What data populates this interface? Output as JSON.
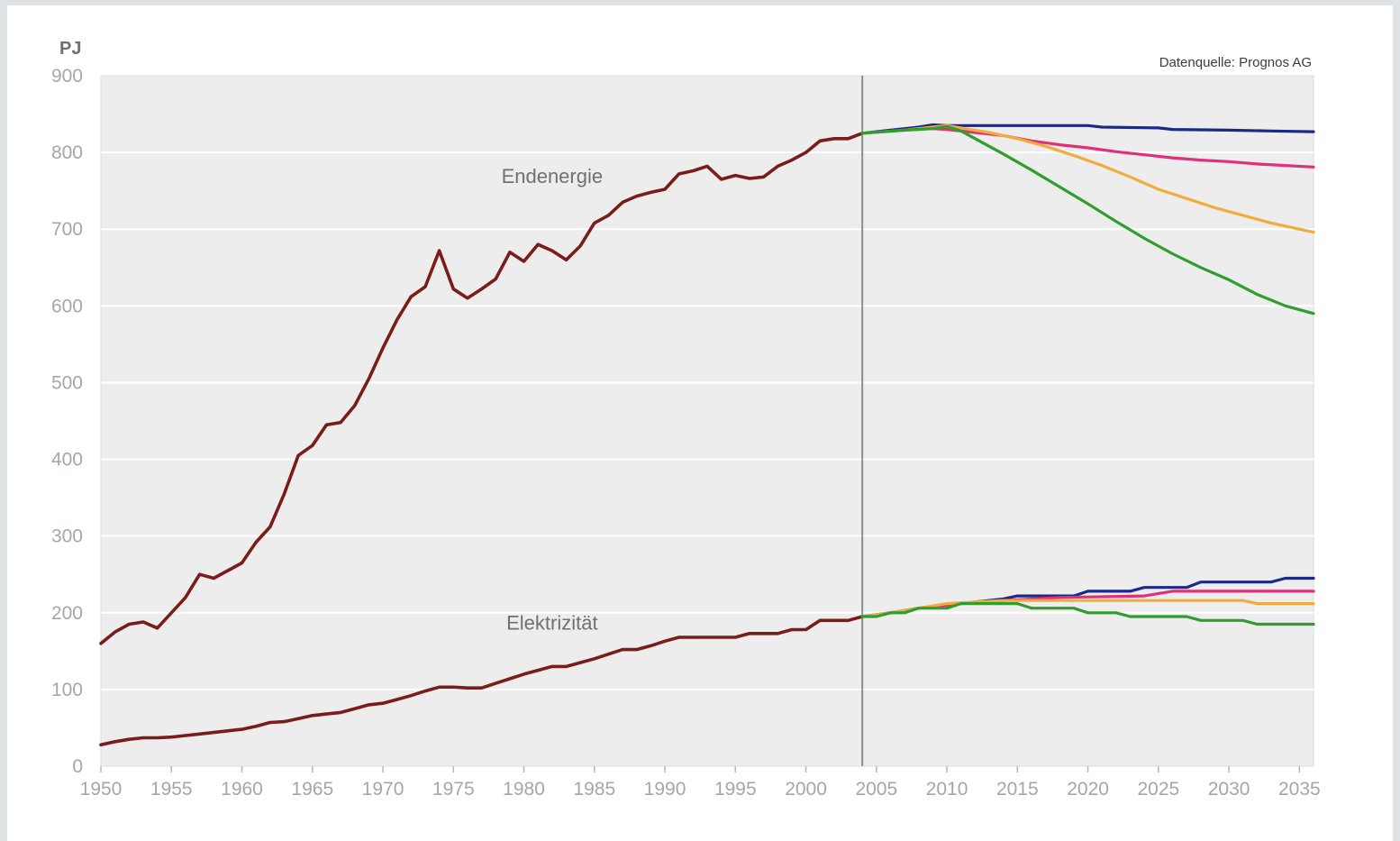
{
  "chart_data": {
    "type": "line",
    "y_unit": "PJ",
    "source": "Datenquelle: Prognos AG",
    "xlim": [
      1950,
      2036
    ],
    "ylim": [
      0,
      900
    ],
    "x_ticks": [
      1950,
      1955,
      1960,
      1965,
      1970,
      1975,
      1980,
      1985,
      1990,
      1995,
      2000,
      2005,
      2010,
      2015,
      2020,
      2025,
      2030,
      2035
    ],
    "y_ticks": [
      0,
      100,
      200,
      300,
      400,
      500,
      600,
      700,
      800,
      900
    ],
    "grid": "horizontal",
    "divider_x": 2004,
    "annotations": [
      {
        "text": "Endenergie",
        "x": 1982,
        "y": 760
      },
      {
        "text": "Elektrizität",
        "x": 1982,
        "y": 178
      }
    ],
    "colors": {
      "plot_bg": "#ededed",
      "grid": "#ffffff",
      "historic": "#7a1c1a",
      "blue": "#1c2a85",
      "pink": "#e0307a",
      "orange": "#f0ac3c",
      "green": "#2f9e2f",
      "divider": "#8a8d90"
    },
    "series": [
      {
        "color": "historic",
        "points": [
          [
            1950,
            160
          ],
          [
            1951,
            175
          ],
          [
            1952,
            185
          ],
          [
            1953,
            188
          ],
          [
            1954,
            180
          ],
          [
            1955,
            200
          ],
          [
            1956,
            220
          ],
          [
            1957,
            250
          ],
          [
            1958,
            245
          ],
          [
            1959,
            255
          ],
          [
            1960,
            265
          ],
          [
            1961,
            292
          ],
          [
            1962,
            312
          ],
          [
            1963,
            355
          ],
          [
            1964,
            405
          ],
          [
            1965,
            418
          ],
          [
            1966,
            445
          ],
          [
            1967,
            448
          ],
          [
            1968,
            470
          ],
          [
            1969,
            505
          ],
          [
            1970,
            545
          ],
          [
            1971,
            582
          ],
          [
            1972,
            612
          ],
          [
            1973,
            625
          ],
          [
            1974,
            672
          ],
          [
            1975,
            622
          ],
          [
            1976,
            610
          ],
          [
            1977,
            622
          ],
          [
            1978,
            635
          ],
          [
            1979,
            670
          ],
          [
            1980,
            658
          ],
          [
            1981,
            680
          ],
          [
            1982,
            672
          ],
          [
            1983,
            660
          ],
          [
            1984,
            678
          ],
          [
            1985,
            708
          ],
          [
            1986,
            718
          ],
          [
            1987,
            735
          ],
          [
            1988,
            743
          ],
          [
            1989,
            748
          ],
          [
            1990,
            752
          ],
          [
            1991,
            772
          ],
          [
            1992,
            776
          ],
          [
            1993,
            782
          ],
          [
            1994,
            765
          ],
          [
            1995,
            770
          ],
          [
            1996,
            766
          ],
          [
            1997,
            768
          ],
          [
            1998,
            782
          ],
          [
            1999,
            790
          ],
          [
            2000,
            800
          ],
          [
            2001,
            815
          ],
          [
            2002,
            818
          ],
          [
            2003,
            818
          ],
          [
            2004,
            825
          ]
        ]
      },
      {
        "color": "historic",
        "points": [
          [
            1950,
            28
          ],
          [
            1951,
            32
          ],
          [
            1952,
            35
          ],
          [
            1953,
            37
          ],
          [
            1954,
            37
          ],
          [
            1955,
            38
          ],
          [
            1956,
            40
          ],
          [
            1957,
            42
          ],
          [
            1958,
            44
          ],
          [
            1959,
            46
          ],
          [
            1960,
            48
          ],
          [
            1961,
            52
          ],
          [
            1962,
            57
          ],
          [
            1963,
            58
          ],
          [
            1964,
            62
          ],
          [
            1965,
            66
          ],
          [
            1966,
            68
          ],
          [
            1967,
            70
          ],
          [
            1968,
            75
          ],
          [
            1969,
            80
          ],
          [
            1970,
            82
          ],
          [
            1971,
            87
          ],
          [
            1972,
            92
          ],
          [
            1973,
            98
          ],
          [
            1974,
            103
          ],
          [
            1975,
            103
          ],
          [
            1976,
            102
          ],
          [
            1977,
            102
          ],
          [
            1978,
            108
          ],
          [
            1979,
            114
          ],
          [
            1980,
            120
          ],
          [
            1981,
            125
          ],
          [
            1982,
            130
          ],
          [
            1983,
            130
          ],
          [
            1984,
            135
          ],
          [
            1985,
            140
          ],
          [
            1986,
            146
          ],
          [
            1987,
            152
          ],
          [
            1988,
            152
          ],
          [
            1989,
            157
          ],
          [
            1990,
            163
          ],
          [
            1991,
            168
          ],
          [
            1992,
            168
          ],
          [
            1993,
            168
          ],
          [
            1994,
            168
          ],
          [
            1995,
            168
          ],
          [
            1996,
            173
          ],
          [
            1997,
            173
          ],
          [
            1998,
            173
          ],
          [
            1999,
            178
          ],
          [
            2000,
            178
          ],
          [
            2001,
            190
          ],
          [
            2002,
            190
          ],
          [
            2003,
            190
          ],
          [
            2004,
            195
          ]
        ]
      },
      {
        "color": "blue",
        "points": [
          [
            2004,
            825
          ],
          [
            2006,
            829
          ],
          [
            2008,
            833
          ],
          [
            2009,
            836
          ],
          [
            2010,
            835
          ],
          [
            2015,
            835
          ],
          [
            2020,
            835
          ],
          [
            2021,
            833
          ],
          [
            2025,
            832
          ],
          [
            2026,
            830
          ],
          [
            2030,
            829
          ],
          [
            2033,
            828
          ],
          [
            2036,
            827
          ]
        ]
      },
      {
        "color": "pink",
        "points": [
          [
            2004,
            825
          ],
          [
            2007,
            829
          ],
          [
            2009,
            831
          ],
          [
            2010,
            830
          ],
          [
            2012,
            826
          ],
          [
            2014,
            822
          ],
          [
            2016,
            815
          ],
          [
            2018,
            810
          ],
          [
            2020,
            806
          ],
          [
            2022,
            801
          ],
          [
            2024,
            797
          ],
          [
            2026,
            793
          ],
          [
            2028,
            790
          ],
          [
            2030,
            788
          ],
          [
            2032,
            785
          ],
          [
            2034,
            783
          ],
          [
            2036,
            781
          ]
        ]
      },
      {
        "color": "orange",
        "points": [
          [
            2004,
            825
          ],
          [
            2007,
            829
          ],
          [
            2009,
            833
          ],
          [
            2010,
            835
          ],
          [
            2011,
            832
          ],
          [
            2013,
            826
          ],
          [
            2015,
            818
          ],
          [
            2017,
            808
          ],
          [
            2019,
            796
          ],
          [
            2021,
            783
          ],
          [
            2023,
            768
          ],
          [
            2025,
            752
          ],
          [
            2027,
            740
          ],
          [
            2029,
            728
          ],
          [
            2031,
            718
          ],
          [
            2033,
            708
          ],
          [
            2035,
            700
          ],
          [
            2036,
            696
          ]
        ]
      },
      {
        "color": "green",
        "points": [
          [
            2004,
            825
          ],
          [
            2007,
            829
          ],
          [
            2009,
            831
          ],
          [
            2010,
            834
          ],
          [
            2011,
            828
          ],
          [
            2012,
            818
          ],
          [
            2014,
            798
          ],
          [
            2016,
            777
          ],
          [
            2018,
            755
          ],
          [
            2020,
            733
          ],
          [
            2022,
            710
          ],
          [
            2024,
            688
          ],
          [
            2026,
            668
          ],
          [
            2028,
            650
          ],
          [
            2030,
            634
          ],
          [
            2032,
            615
          ],
          [
            2034,
            600
          ],
          [
            2036,
            590
          ]
        ]
      },
      {
        "color": "blue",
        "points": [
          [
            2004,
            195
          ],
          [
            2006,
            200
          ],
          [
            2008,
            206
          ],
          [
            2010,
            210
          ],
          [
            2012,
            214
          ],
          [
            2014,
            218
          ],
          [
            2015,
            222
          ],
          [
            2019,
            222
          ],
          [
            2020,
            228
          ],
          [
            2023,
            228
          ],
          [
            2024,
            233
          ],
          [
            2027,
            233
          ],
          [
            2028,
            240
          ],
          [
            2033,
            240
          ],
          [
            2034,
            245
          ],
          [
            2036,
            245
          ]
        ]
      },
      {
        "color": "pink",
        "points": [
          [
            2004,
            195
          ],
          [
            2006,
            200
          ],
          [
            2008,
            206
          ],
          [
            2010,
            210
          ],
          [
            2012,
            214
          ],
          [
            2014,
            216
          ],
          [
            2018,
            220
          ],
          [
            2024,
            222
          ],
          [
            2026,
            228
          ],
          [
            2036,
            228
          ]
        ]
      },
      {
        "color": "orange",
        "points": [
          [
            2004,
            195
          ],
          [
            2006,
            200
          ],
          [
            2008,
            206
          ],
          [
            2010,
            212
          ],
          [
            2012,
            214
          ],
          [
            2014,
            216
          ],
          [
            2028,
            216
          ],
          [
            2031,
            216
          ],
          [
            2032,
            212
          ],
          [
            2036,
            212
          ]
        ]
      },
      {
        "color": "green",
        "points": [
          [
            2004,
            195
          ],
          [
            2005,
            195
          ],
          [
            2006,
            200
          ],
          [
            2007,
            200
          ],
          [
            2008,
            206
          ],
          [
            2010,
            206
          ],
          [
            2011,
            212
          ],
          [
            2015,
            212
          ],
          [
            2016,
            206
          ],
          [
            2019,
            206
          ],
          [
            2020,
            200
          ],
          [
            2022,
            200
          ],
          [
            2023,
            195
          ],
          [
            2027,
            195
          ],
          [
            2028,
            190
          ],
          [
            2031,
            190
          ],
          [
            2032,
            185
          ],
          [
            2036,
            185
          ]
        ]
      }
    ]
  }
}
